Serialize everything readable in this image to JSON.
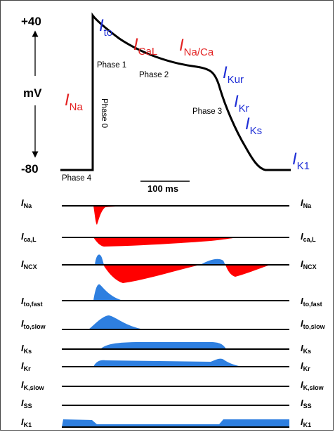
{
  "axis": {
    "top_label": "+40",
    "bottom_label": "-80",
    "unit": "mV"
  },
  "phases": {
    "p0": "Phase 0",
    "p1": "Phase 1",
    "p2": "Phase 2",
    "p3": "Phase 3",
    "p4": "Phase 4"
  },
  "scale_bar": "100 ms",
  "ap_labels": {
    "na": {
      "I": "I",
      "sub": "Na"
    },
    "to": {
      "I": "I",
      "sub": "to"
    },
    "cal": {
      "I": "I",
      "sub": "CaL"
    },
    "naca": {
      "I": "I",
      "sub": "Na/Ca"
    },
    "kur": {
      "I": "I",
      "sub": "Kur"
    },
    "kr": {
      "I": "I",
      "sub": "Kr"
    },
    "ks": {
      "I": "I",
      "sub": "Ks"
    },
    "k1": {
      "I": "I",
      "sub": "K1"
    }
  },
  "currents": [
    {
      "I": "I",
      "sub": "Na"
    },
    {
      "I": "I",
      "sub": "ca,L"
    },
    {
      "I": "I",
      "sub": "NCX"
    },
    {
      "I": "I",
      "sub": "to,fast"
    },
    {
      "I": "I",
      "sub": "to,slow"
    },
    {
      "I": "I",
      "sub": "Ks"
    },
    {
      "I": "I",
      "sub": "Kr"
    },
    {
      "I": "I",
      "sub": "K,slow"
    },
    {
      "I": "I",
      "sub": "SS"
    },
    {
      "I": "I",
      "sub": "K1"
    }
  ],
  "colors": {
    "inward": "#ff0000",
    "outward": "#2e7fe0",
    "red_text": "#e32222",
    "blue_text": "#1f2fd6"
  }
}
